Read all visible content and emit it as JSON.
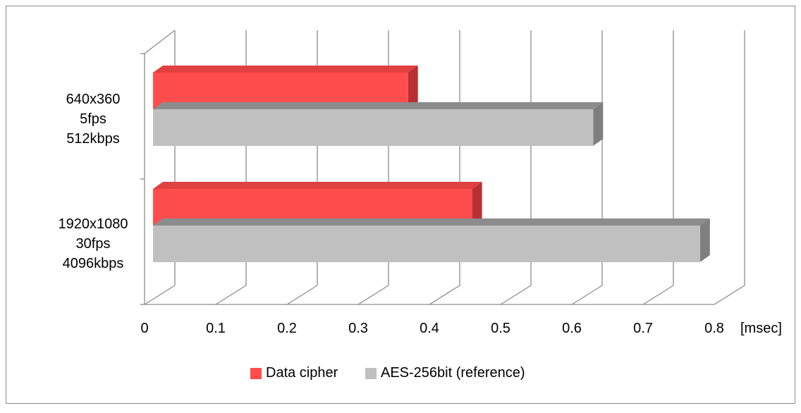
{
  "chart_data": {
    "type": "bar",
    "orientation": "horizontal",
    "style": "3d",
    "title": "",
    "xlabel": "[msec]",
    "ylabel": "",
    "xlim": [
      0,
      0.8
    ],
    "x_ticks": [
      "0",
      "0.1",
      "0.2",
      "0.3",
      "0.4",
      "0.5",
      "0.6",
      "0.7",
      "0.8"
    ],
    "x_tick_values": [
      0,
      0.1,
      0.2,
      0.3,
      0.4,
      0.5,
      0.6,
      0.7,
      0.8
    ],
    "grid": true,
    "legend_position": "bottom",
    "categories": [
      {
        "lines": [
          "640x360",
          "5fps",
          "512kbps"
        ]
      },
      {
        "lines": [
          "1920x1080",
          "30fps",
          "4096kbps"
        ]
      }
    ],
    "series": [
      {
        "name": "Data cipher",
        "values": [
          0.37,
          0.46
        ],
        "color": "#ff4d4d",
        "side_color": "#b83030",
        "top_color": "#e04040"
      },
      {
        "name": "AES-256bit (reference)",
        "values": [
          0.63,
          0.78
        ],
        "color": "#c0c0c0",
        "side_color": "#7f7f7f",
        "top_color": "#8c8c8c"
      }
    ],
    "grid_color": "#8c8c8c",
    "frame_color": "#8c8c8c"
  }
}
